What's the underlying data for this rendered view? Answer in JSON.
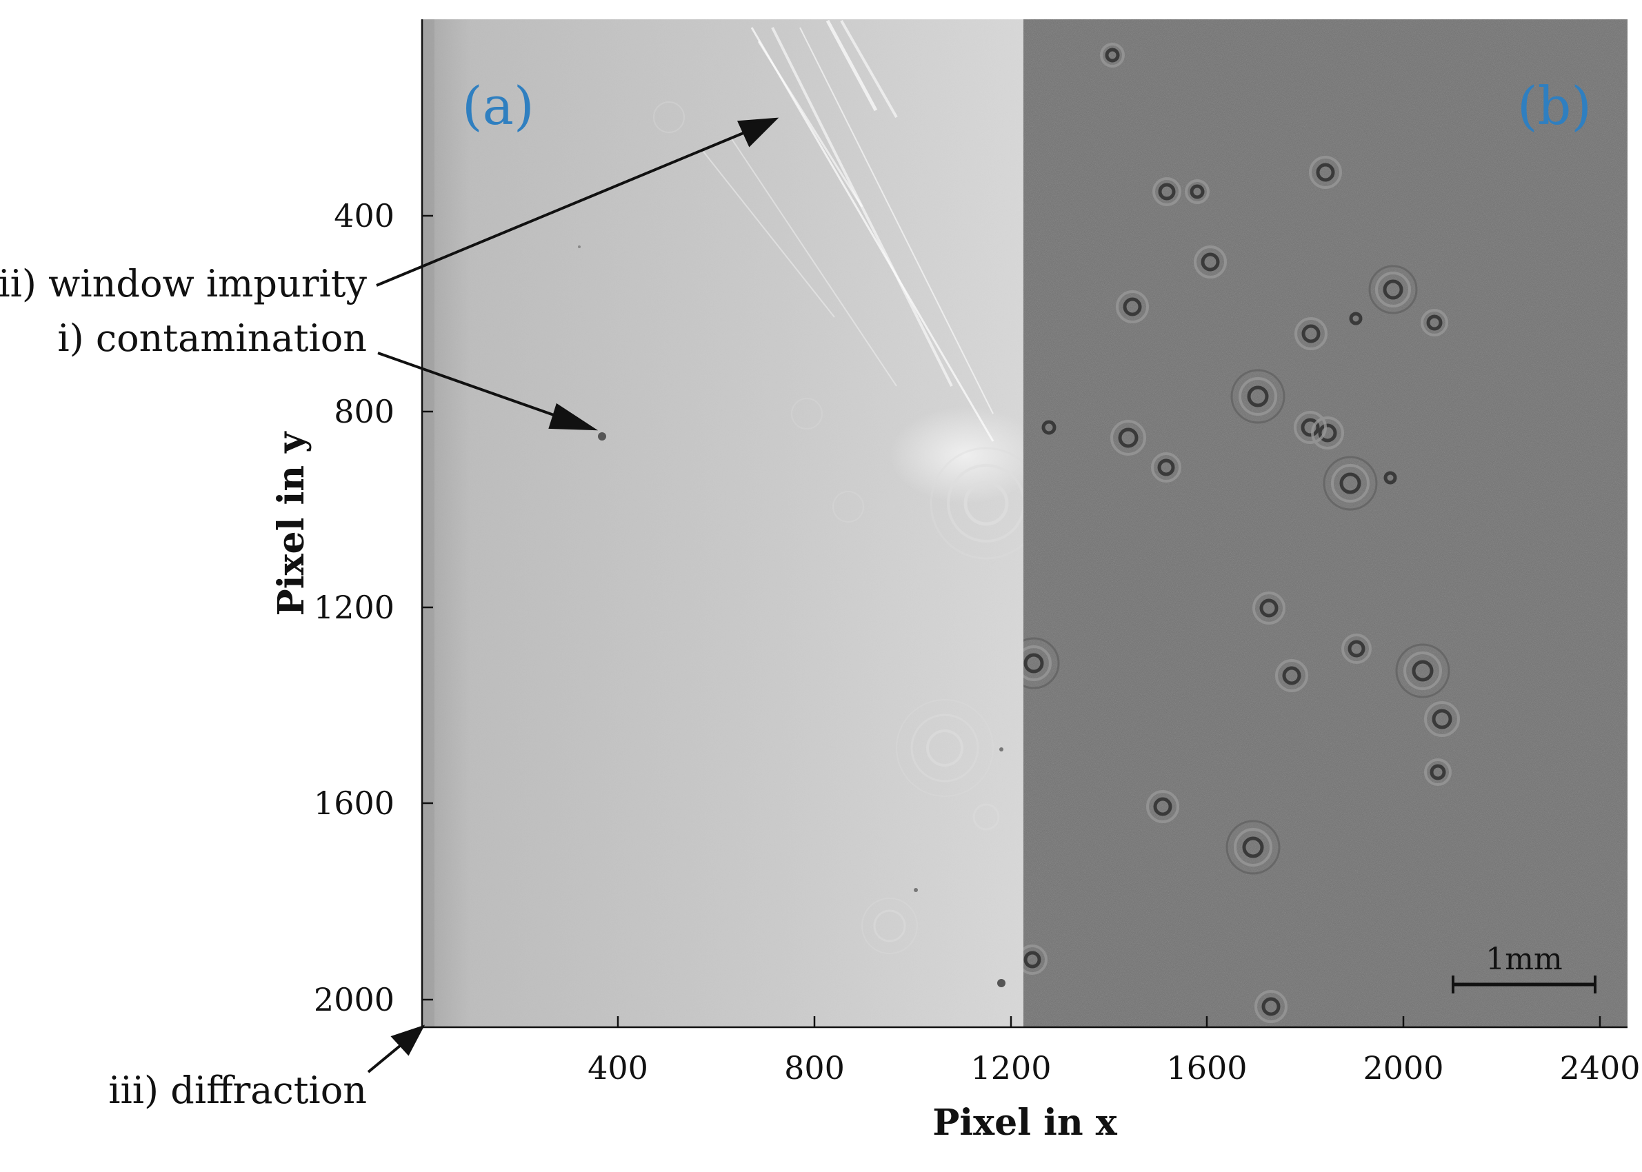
{
  "panels": {
    "a_label": "(a)",
    "b_label": "(b)"
  },
  "axes": {
    "x_label": "Pixel in x",
    "y_label": "Pixel in y",
    "x_ticks": [
      "400",
      "800",
      "1200",
      "1600",
      "2000",
      "2400"
    ],
    "y_ticks": [
      "400",
      "800",
      "1200",
      "1600",
      "2000"
    ]
  },
  "annotations": {
    "window_impurity": "ii) window impurity",
    "contamination": "i) contamination",
    "diffraction": "iii) diffraction"
  },
  "scale_bar": {
    "label": "1mm"
  },
  "colors": {
    "panel_label": "#2f7fc0",
    "left_panel_bg": "#c9c9c9",
    "right_panel_bg": "#6e6e6e"
  }
}
